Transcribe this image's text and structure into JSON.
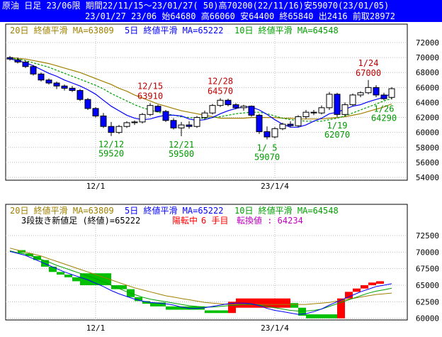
{
  "header": {
    "line1": "原油 日足 23/06限 期間22/11/15〜23/01/27( 50)高70200(22/11/16)安59070(23/01/05)",
    "line2": "23/01/27 23/06 始64680 高66060 安64400 終65840 出2416 前取28972"
  },
  "legend": {
    "ma20": "20日 終値平滑 MA=63809",
    "ma5": "5日 終値平滑 MA=65222",
    "ma10": "10日 終値平滑 MA=64548",
    "lower_line2_a": "3段抜き新値足 (終値)=65222",
    "lower_line2_b": "陽転中",
    "lower_line2_c": "6 手目",
    "lower_line2_d": "転換値 : 64234"
  },
  "colors": {
    "header_bg": "#0000ff",
    "header_text": "#ffffff",
    "ma20": "#a08000",
    "ma5": "#0000ff",
    "ma10": "#00a000",
    "up_candle": "#ffffff",
    "down_candle": "#0000ff",
    "renko_up": "#ff0000",
    "renko_down": "#00c000",
    "annotation_high": "#c00000",
    "annotation_low": "#009900",
    "grid": "#bbbbbb"
  },
  "chart_data": [
    {
      "type": "candlestick",
      "title": "原油 日足 23/06限",
      "ylim": [
        54000,
        72000
      ],
      "y_ticks": [
        54000,
        56000,
        58000,
        60000,
        62000,
        64000,
        66000,
        68000,
        70000,
        72000
      ],
      "x_tick_labels": [
        {
          "index": 11,
          "label": "12/1"
        },
        {
          "index": 34,
          "label": "23/1/4"
        }
      ],
      "candles": [
        {
          "o": 70000,
          "h": 70200,
          "l": 69600,
          "c": 69800
        },
        {
          "o": 69700,
          "h": 70000,
          "l": 69200,
          "c": 69400
        },
        {
          "o": 69400,
          "h": 69600,
          "l": 68600,
          "c": 68800
        },
        {
          "o": 68800,
          "h": 69000,
          "l": 67600,
          "c": 67800
        },
        {
          "o": 67800,
          "h": 68000,
          "l": 66800,
          "c": 67000
        },
        {
          "o": 67000,
          "h": 67200,
          "l": 66400,
          "c": 66600
        },
        {
          "o": 66600,
          "h": 66800,
          "l": 65800,
          "c": 66200
        },
        {
          "o": 66200,
          "h": 66400,
          "l": 65600,
          "c": 65900
        },
        {
          "o": 65900,
          "h": 66200,
          "l": 65400,
          "c": 65600
        },
        {
          "o": 65600,
          "h": 65800,
          "l": 64200,
          "c": 64400
        },
        {
          "o": 64400,
          "h": 64600,
          "l": 63000,
          "c": 63200
        },
        {
          "o": 63200,
          "h": 63400,
          "l": 62000,
          "c": 62200
        },
        {
          "o": 62200,
          "h": 62600,
          "l": 60600,
          "c": 60800
        },
        {
          "o": 60800,
          "h": 61400,
          "l": 59520,
          "c": 60000
        },
        {
          "o": 60000,
          "h": 61000,
          "l": 59800,
          "c": 60800
        },
        {
          "o": 60800,
          "h": 61500,
          "l": 60600,
          "c": 61300
        },
        {
          "o": 61300,
          "h": 61600,
          "l": 61000,
          "c": 61400
        },
        {
          "o": 61400,
          "h": 62600,
          "l": 61200,
          "c": 62400
        },
        {
          "o": 62400,
          "h": 63910,
          "l": 62200,
          "c": 63600
        },
        {
          "o": 63500,
          "h": 63700,
          "l": 62700,
          "c": 62800
        },
        {
          "o": 62800,
          "h": 63000,
          "l": 61400,
          "c": 61600
        },
        {
          "o": 61600,
          "h": 61900,
          "l": 60400,
          "c": 60600
        },
        {
          "o": 60600,
          "h": 61400,
          "l": 59500,
          "c": 61000
        },
        {
          "o": 61000,
          "h": 61500,
          "l": 60500,
          "c": 60800
        },
        {
          "o": 60800,
          "h": 62200,
          "l": 60600,
          "c": 62000
        },
        {
          "o": 62000,
          "h": 62900,
          "l": 61700,
          "c": 62600
        },
        {
          "o": 62600,
          "h": 63800,
          "l": 62400,
          "c": 63600
        },
        {
          "o": 63600,
          "h": 64570,
          "l": 63400,
          "c": 64300
        },
        {
          "o": 64300,
          "h": 64500,
          "l": 63500,
          "c": 63700
        },
        {
          "o": 63700,
          "h": 63900,
          "l": 63100,
          "c": 63300
        },
        {
          "o": 63300,
          "h": 63700,
          "l": 62900,
          "c": 63500
        },
        {
          "o": 63500,
          "h": 63600,
          "l": 62100,
          "c": 62300
        },
        {
          "o": 62300,
          "h": 62500,
          "l": 59800,
          "c": 60100
        },
        {
          "o": 60100,
          "h": 60800,
          "l": 59070,
          "c": 59400
        },
        {
          "o": 59400,
          "h": 60700,
          "l": 59200,
          "c": 60500
        },
        {
          "o": 60500,
          "h": 61300,
          "l": 60300,
          "c": 61100
        },
        {
          "o": 61100,
          "h": 61500,
          "l": 60700,
          "c": 60900
        },
        {
          "o": 60900,
          "h": 62300,
          "l": 60700,
          "c": 62100
        },
        {
          "o": 62100,
          "h": 63000,
          "l": 61800,
          "c": 62700
        },
        {
          "o": 62700,
          "h": 63000,
          "l": 62300,
          "c": 62600
        },
        {
          "o": 62600,
          "h": 63600,
          "l": 62400,
          "c": 63300
        },
        {
          "o": 63300,
          "h": 65400,
          "l": 63000,
          "c": 65100
        },
        {
          "o": 65100,
          "h": 65300,
          "l": 62070,
          "c": 62400
        },
        {
          "o": 62400,
          "h": 64000,
          "l": 62200,
          "c": 63700
        },
        {
          "o": 63700,
          "h": 65200,
          "l": 63500,
          "c": 65000
        },
        {
          "o": 65000,
          "h": 65500,
          "l": 64700,
          "c": 65300
        },
        {
          "o": 65300,
          "h": 67000,
          "l": 65100,
          "c": 66000
        },
        {
          "o": 66000,
          "h": 66300,
          "l": 64700,
          "c": 65000
        },
        {
          "o": 65000,
          "h": 65300,
          "l": 64290,
          "c": 64500
        },
        {
          "o": 64680,
          "h": 66060,
          "l": 64400,
          "c": 65840
        }
      ],
      "ma5": [
        69800,
        69600,
        69300,
        68900,
        68400,
        67900,
        67500,
        67000,
        66600,
        66200,
        65700,
        65100,
        64300,
        63500,
        62900,
        62300,
        61900,
        61700,
        61800,
        62100,
        62300,
        62300,
        62200,
        61800,
        61600,
        61700,
        62000,
        62500,
        62900,
        63200,
        63400,
        63400,
        63000,
        62400,
        61700,
        61100,
        60700,
        60700,
        61000,
        61500,
        61900,
        62500,
        62700,
        63100,
        63500,
        63700,
        64100,
        64400,
        64700,
        65222
      ],
      "ma10": [
        69900,
        69800,
        69600,
        69300,
        69000,
        68700,
        68300,
        67900,
        67500,
        67100,
        66700,
        66300,
        65800,
        65200,
        64700,
        64200,
        63700,
        63300,
        63000,
        62700,
        62500,
        62300,
        62100,
        62000,
        61900,
        61900,
        62000,
        62100,
        62300,
        62500,
        62600,
        62700,
        62700,
        62500,
        62200,
        61900,
        61700,
        61600,
        61500,
        61500,
        61500,
        61700,
        61900,
        62200,
        62600,
        63000,
        63400,
        63800,
        64200,
        64548
      ],
      "ma20": [
        70000,
        69900,
        69800,
        69600,
        69400,
        69200,
        68900,
        68600,
        68300,
        68000,
        67600,
        67200,
        66800,
        66400,
        65900,
        65500,
        65000,
        64600,
        64200,
        63800,
        63500,
        63200,
        62900,
        62700,
        62500,
        62300,
        62100,
        61900,
        61900,
        61900,
        61900,
        62000,
        62000,
        62000,
        62000,
        61900,
        61900,
        61800,
        61800,
        61800,
        61800,
        61900,
        62000,
        62100,
        62300,
        62500,
        62800,
        63100,
        63400,
        63809
      ],
      "annotations": [
        {
          "label": "12/15",
          "value": "63910",
          "index": 18,
          "kind": "high"
        },
        {
          "label": "12/28",
          "value": "64570",
          "index": 27,
          "kind": "high"
        },
        {
          "label": "1/24",
          "value": "67000",
          "index": 46,
          "kind": "high"
        },
        {
          "label": "12/12",
          "value": "59520",
          "index": 13,
          "kind": "low"
        },
        {
          "label": "12/21",
          "value": "59500",
          "index": 22,
          "kind": "low"
        },
        {
          "label": "1/ 5",
          "value": "59070",
          "index": 33,
          "kind": "low"
        },
        {
          "label": "1/19",
          "value": "62070",
          "index": 42,
          "kind": "low"
        },
        {
          "label": "1/26",
          "value": "64290",
          "index": 48,
          "kind": "low"
        }
      ]
    },
    {
      "type": "bar",
      "title": "3段抜き新値足 (終値)=65222",
      "ylim": [
        59000,
        74000
      ],
      "y_ticks": [
        60000,
        62500,
        65000,
        67500,
        70000,
        72500
      ],
      "x_tick_labels": [
        {
          "index": 11,
          "label": "12/1"
        },
        {
          "index": 34,
          "label": "23/1/4"
        }
      ],
      "bricks": [
        {
          "from": 1,
          "to": 2,
          "hi": 70300,
          "lo": 69900,
          "dir": "down"
        },
        {
          "from": 2,
          "to": 3,
          "hi": 69800,
          "lo": 69400,
          "dir": "down"
        },
        {
          "from": 3,
          "to": 4,
          "hi": 69400,
          "lo": 68800,
          "dir": "down"
        },
        {
          "from": 4,
          "to": 5,
          "hi": 68800,
          "lo": 67800,
          "dir": "down"
        },
        {
          "from": 5,
          "to": 6,
          "hi": 67800,
          "lo": 67000,
          "dir": "down"
        },
        {
          "from": 6,
          "to": 7,
          "hi": 67000,
          "lo": 66600,
          "dir": "down"
        },
        {
          "from": 7,
          "to": 8,
          "hi": 66600,
          "lo": 66200,
          "dir": "down"
        },
        {
          "from": 8,
          "to": 9,
          "hi": 66200,
          "lo": 65600,
          "dir": "down"
        },
        {
          "from": 9,
          "to": 13,
          "hi": 66800,
          "lo": 65000,
          "dir": "down"
        },
        {
          "from": 13,
          "to": 15,
          "hi": 65000,
          "lo": 64400,
          "dir": "down"
        },
        {
          "from": 15,
          "to": 16,
          "hi": 64400,
          "lo": 63200,
          "dir": "down"
        },
        {
          "from": 16,
          "to": 17,
          "hi": 63200,
          "lo": 62600,
          "dir": "down"
        },
        {
          "from": 17,
          "to": 18,
          "hi": 62600,
          "lo": 62200,
          "dir": "down"
        },
        {
          "from": 18,
          "to": 20,
          "hi": 62400,
          "lo": 61800,
          "dir": "down"
        },
        {
          "from": 20,
          "to": 25,
          "hi": 61800,
          "lo": 61300,
          "dir": "down"
        },
        {
          "from": 25,
          "to": 28,
          "hi": 61200,
          "lo": 60800,
          "dir": "down"
        },
        {
          "from": 28,
          "to": 29,
          "hi": 62500,
          "lo": 60800,
          "dir": "up"
        },
        {
          "from": 29,
          "to": 36,
          "hi": 63000,
          "lo": 61600,
          "dir": "up"
        },
        {
          "from": 36,
          "to": 37,
          "hi": 62300,
          "lo": 61600,
          "dir": "down"
        },
        {
          "from": 37,
          "to": 38,
          "hi": 61600,
          "lo": 60400,
          "dir": "down"
        },
        {
          "from": 38,
          "to": 42,
          "hi": 60600,
          "lo": 60000,
          "dir": "down"
        },
        {
          "from": 42,
          "to": 43,
          "hi": 63000,
          "lo": 60000,
          "dir": "up"
        },
        {
          "from": 43,
          "to": 44,
          "hi": 64000,
          "lo": 63000,
          "dir": "up"
        },
        {
          "from": 44,
          "to": 45,
          "hi": 64500,
          "lo": 64000,
          "dir": "up"
        },
        {
          "from": 45,
          "to": 46,
          "hi": 65000,
          "lo": 64500,
          "dir": "up"
        },
        {
          "from": 46,
          "to": 47,
          "hi": 65400,
          "lo": 65000,
          "dir": "up"
        },
        {
          "from": 47,
          "to": 48,
          "hi": 65600,
          "lo": 65222,
          "dir": "up"
        }
      ],
      "ma5_line": [
        70100,
        69800,
        69500,
        69000,
        68500,
        68000,
        67500,
        67000,
        66600,
        66200,
        65800,
        65300,
        64800,
        64200,
        63700,
        63300,
        62900,
        62600,
        62400,
        62300,
        62200,
        62000,
        61700,
        61500,
        61500,
        61600,
        61800,
        62000,
        62200,
        62300,
        62300,
        62200,
        61900,
        61500,
        61200,
        61000,
        60800,
        60600,
        60700,
        61000,
        61400,
        62000,
        62500,
        63000,
        63500,
        64000,
        64400,
        64800,
        65000,
        65222
      ],
      "ma10_line": [
        70200,
        69900,
        69700,
        69300,
        68900,
        68500,
        68000,
        67600,
        67200,
        66800,
        66400,
        66000,
        65500,
        65000,
        64500,
        64000,
        63600,
        63200,
        62900,
        62700,
        62500,
        62300,
        62100,
        61900,
        61800,
        61700,
        61700,
        61800,
        61900,
        62000,
        62100,
        62100,
        62000,
        61800,
        61600,
        61400,
        61200,
        61100,
        61100,
        61200,
        61400,
        61800,
        62200,
        62600,
        63000,
        63400,
        63800,
        64100,
        64300,
        64548
      ],
      "ma20_line": [
        70600,
        70300,
        70000,
        69700,
        69400,
        69000,
        68600,
        68200,
        67800,
        67400,
        67000,
        66600,
        66200,
        65800,
        65400,
        65000,
        64600,
        64300,
        64000,
        63700,
        63400,
        63200,
        63000,
        62800,
        62600,
        62400,
        62300,
        62200,
        62100,
        62100,
        62100,
        62100,
        62100,
        62100,
        62100,
        62100,
        62100,
        62100,
        62100,
        62200,
        62300,
        62400,
        62600,
        62800,
        63000,
        63200,
        63400,
        63600,
        63700,
        63809
      ]
    }
  ]
}
